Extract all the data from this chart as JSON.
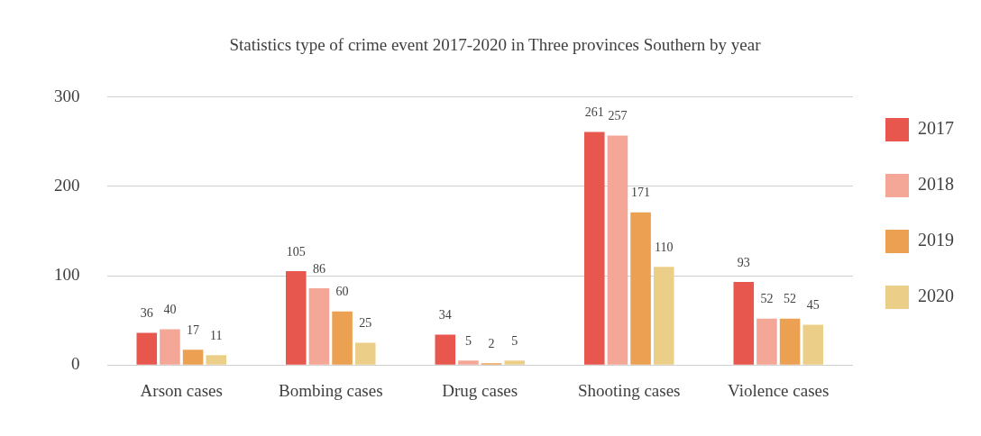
{
  "chart_data": {
    "type": "bar",
    "title": "Statistics type of crime event 2017-2020 in Three provinces Southern by year",
    "categories": [
      "Arson cases",
      "Bombing cases",
      "Drug cases",
      "Shooting cases",
      "Violence cases"
    ],
    "series": [
      {
        "name": "2017",
        "color": "#e8574e",
        "values": [
          36,
          105,
          34,
          261,
          93
        ]
      },
      {
        "name": "2018",
        "color": "#f4a697",
        "values": [
          40,
          86,
          5,
          257,
          52
        ]
      },
      {
        "name": "2019",
        "color": "#eba052",
        "values": [
          17,
          60,
          2,
          171,
          52
        ]
      },
      {
        "name": "2020",
        "color": "#ebcf88",
        "values": [
          11,
          25,
          5,
          110,
          45
        ]
      }
    ],
    "ylim": [
      0,
      300
    ],
    "yticks": [
      0,
      100,
      200,
      300
    ],
    "grid": "y",
    "legend": "right",
    "data_labels": true
  }
}
